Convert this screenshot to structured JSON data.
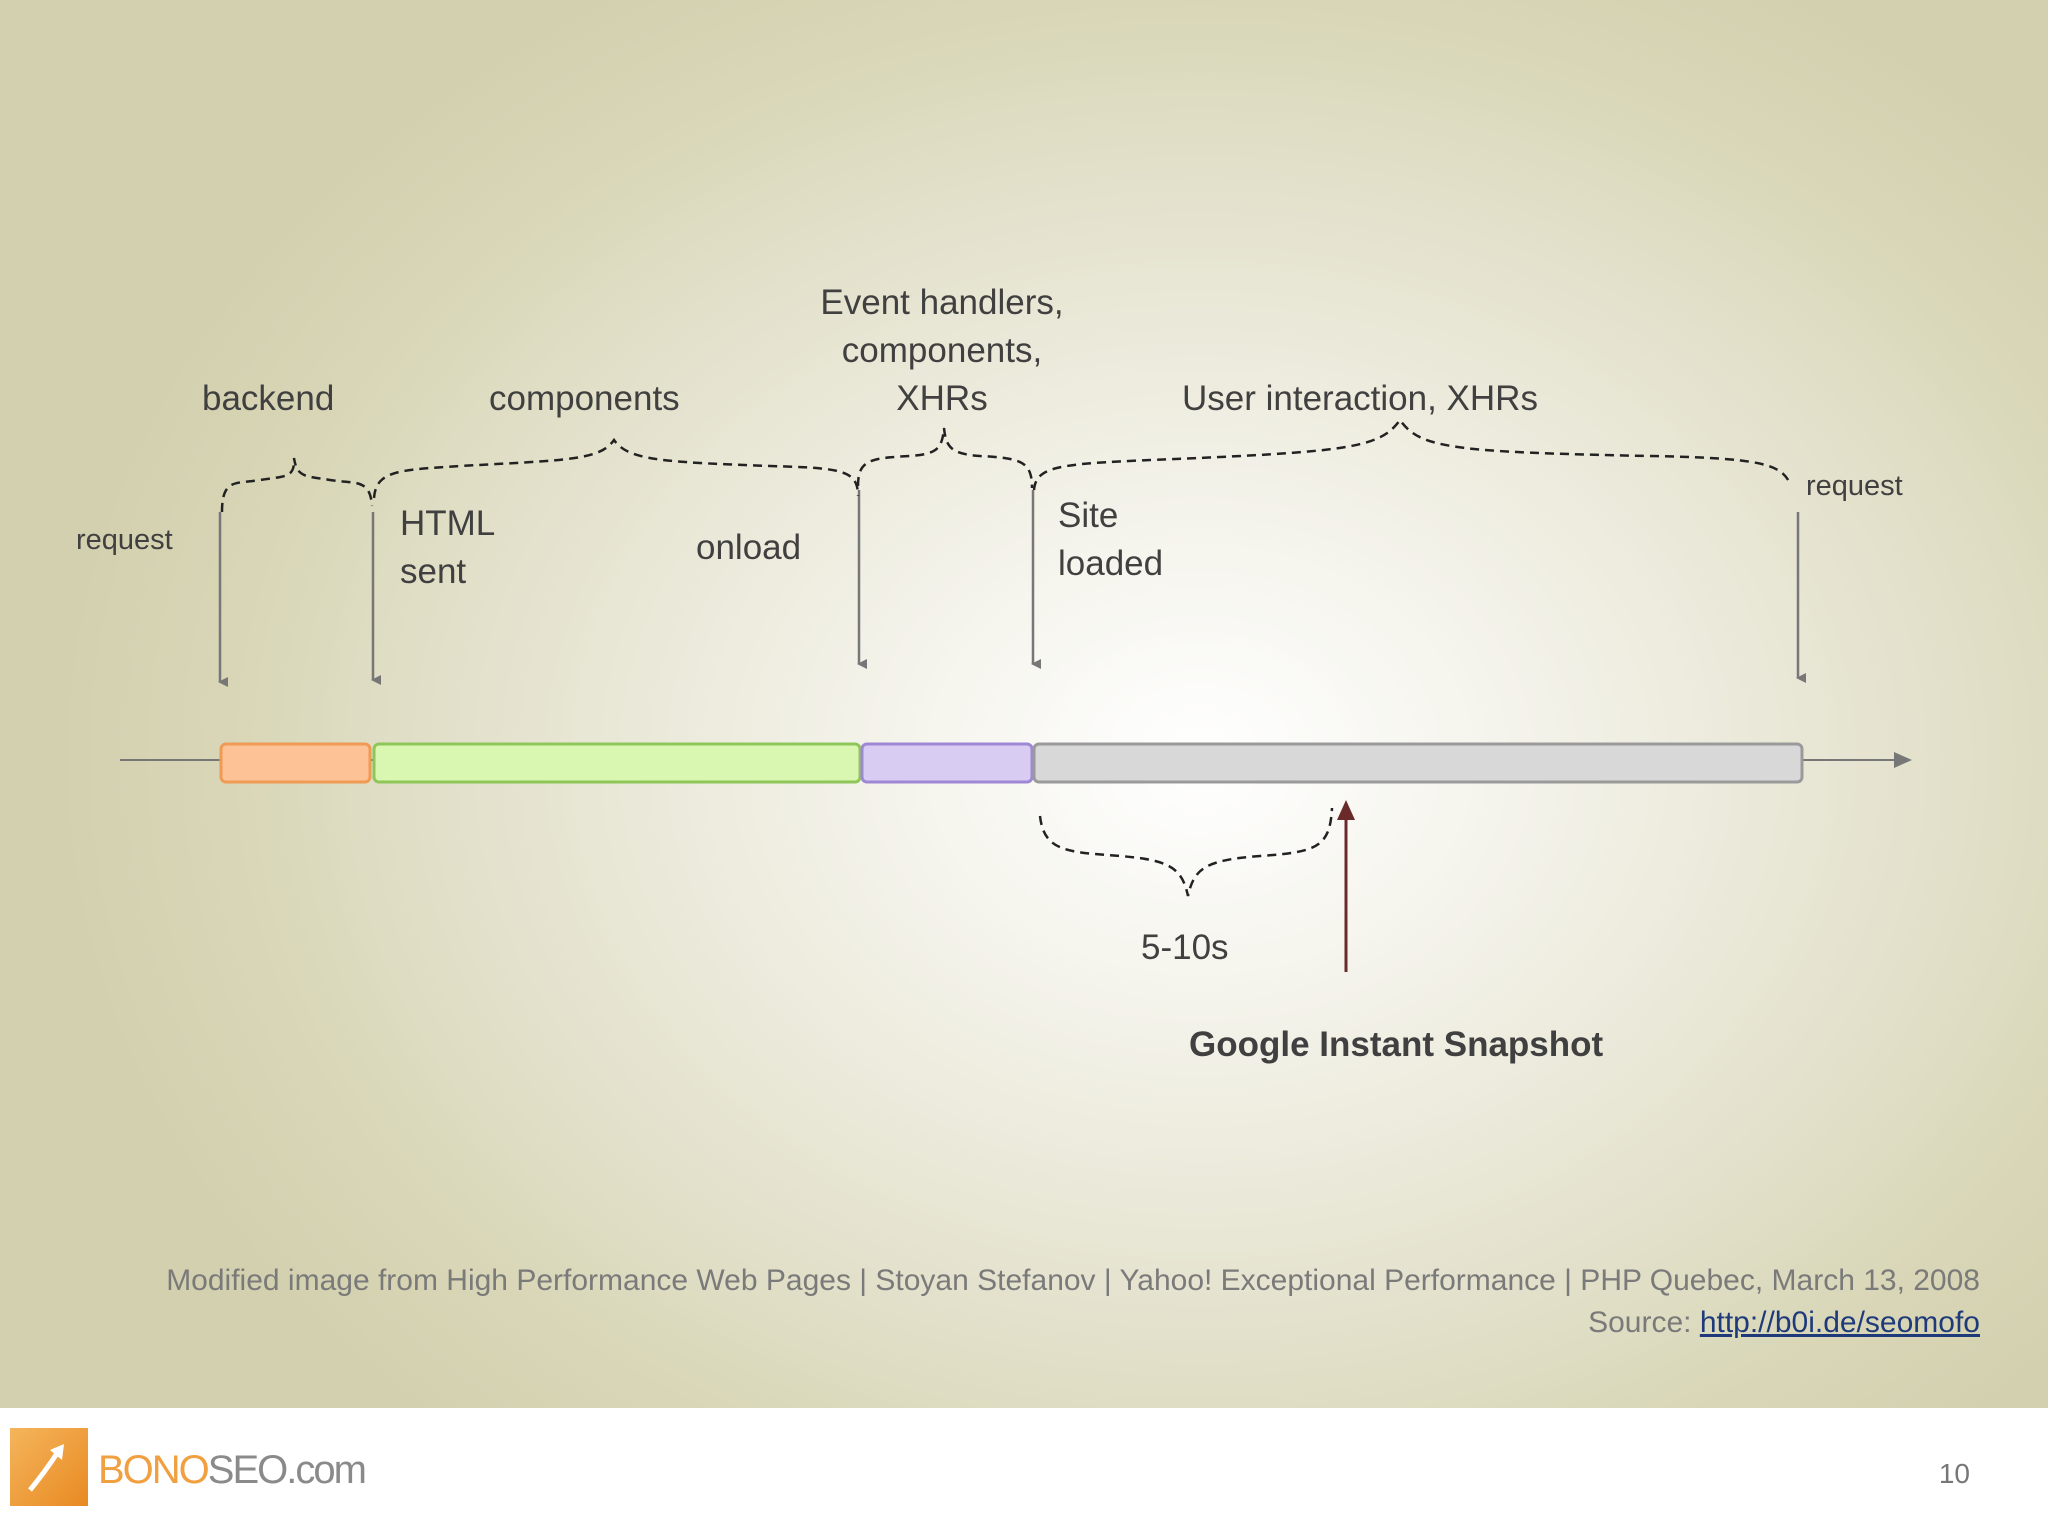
{
  "labels": {
    "backend": "backend",
    "components": "components",
    "event_handlers": "Event handlers,\ncomponents,\nXHRs",
    "user_interaction": "User interaction, XHRs",
    "request_left": "request",
    "request_right": "request",
    "html_sent": "HTML\nsent",
    "onload": "onload",
    "site_loaded": "Site\nloaded",
    "duration": "5-10s",
    "snapshot": "Google Instant Snapshot"
  },
  "colors": {
    "backend_fill": "#fdc397",
    "backend_stroke": "#ef9a55",
    "components_fill": "#d9f7b0",
    "components_stroke": "#8fc65a",
    "handlers_fill": "#d8ccf2",
    "handlers_stroke": "#9e88d6",
    "interaction_fill": "#d8d8d8",
    "interaction_stroke": "#9a9a9a",
    "snapshot_arrow": "#6b2a2a"
  },
  "citation": {
    "line1": "Modified image from High Performance Web Pages | Stoyan Stefanov | Yahoo! Exceptional Performance | PHP Quebec, March 13, 2008",
    "source_label": "Source: ",
    "source_link": "http://b0i.de/seomofo"
  },
  "footer": {
    "logo_part1": "BONO",
    "logo_part2": "SEO.com",
    "page_number": "10"
  }
}
